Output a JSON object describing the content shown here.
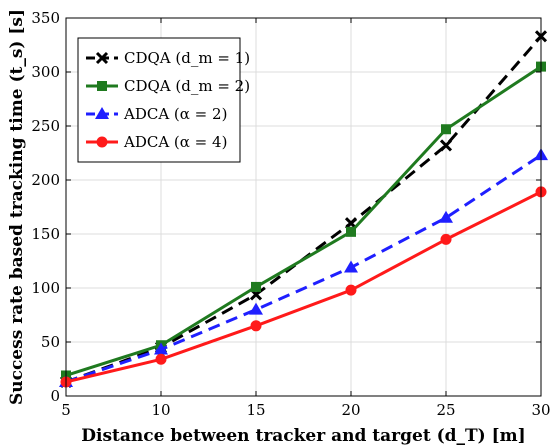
{
  "chart_data": {
    "type": "line",
    "title": "",
    "xlabel": "Distance between tracker and target (d_T) [m]",
    "ylabel": "Success rate based tracking time (t_s) [s]",
    "x": [
      5,
      10,
      15,
      20,
      25,
      30
    ],
    "xlim": [
      5,
      30
    ],
    "ylim": [
      0,
      350
    ],
    "xticks": [
      5,
      10,
      15,
      20,
      25,
      30
    ],
    "yticks": [
      0,
      50,
      100,
      150,
      200,
      250,
      300,
      350
    ],
    "grid": true,
    "legend_position": "top-left",
    "series": [
      {
        "name": "CDQA (d_m = 1)",
        "values": [
          13,
          45,
          94,
          160,
          232,
          333
        ],
        "color": "#000000",
        "line_style": "dashed",
        "marker": "x"
      },
      {
        "name": "CDQA (d_m = 2)",
        "values": [
          19,
          47,
          101,
          152,
          247,
          305
        ],
        "color": "#1f7a1f",
        "line_style": "solid",
        "marker": "square"
      },
      {
        "name": "ADCA (α = 2)",
        "values": [
          13,
          43,
          80,
          119,
          165,
          223
        ],
        "color": "#1f1fff",
        "line_style": "dashed",
        "marker": "triangle"
      },
      {
        "name": "ADCA (α = 4)",
        "values": [
          13,
          34,
          65,
          98,
          145,
          189
        ],
        "color": "#ff1a1a",
        "line_style": "solid",
        "marker": "circle"
      }
    ]
  }
}
